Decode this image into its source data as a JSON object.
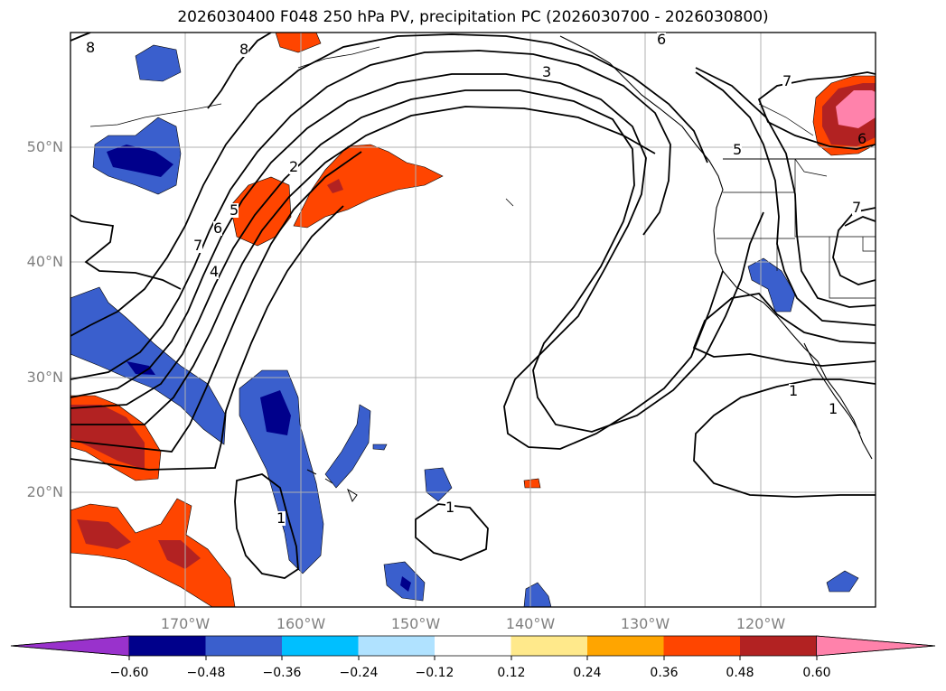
{
  "title": "2026030400 F048 250 hPa PV, precipitation PC (2026030700 - 2026030800)",
  "map": {
    "lat_labels": [
      "50°N",
      "40°N",
      "30°N",
      "20°N"
    ],
    "lon_labels": [
      "170°W",
      "160°W",
      "150°W",
      "140°W",
      "130°W",
      "120°W"
    ],
    "extent": {
      "lon": [
        -180,
        -110
      ],
      "lat": [
        10,
        60
      ]
    },
    "contour_labels": [
      "8",
      "8",
      "6",
      "3",
      "2",
      "5",
      "6",
      "7",
      "4",
      "7",
      "6",
      "7",
      "5",
      "1",
      "1",
      "1",
      "1"
    ]
  },
  "colorbar": {
    "ticks": [
      "−0.60",
      "−0.48",
      "−0.36",
      "−0.24",
      "−0.12",
      "0.12",
      "0.24",
      "0.36",
      "0.48",
      "0.60"
    ],
    "colors": [
      "#9932cc",
      "#00008b",
      "#3a5fcd",
      "#00bfff",
      "#b0e2ff",
      "#ffffff",
      "#ffe98b",
      "#ffa500",
      "#ff4500",
      "#b22222",
      "#ff82ab"
    ],
    "extend": "both"
  },
  "gridline_color": "#b0b0b0"
}
